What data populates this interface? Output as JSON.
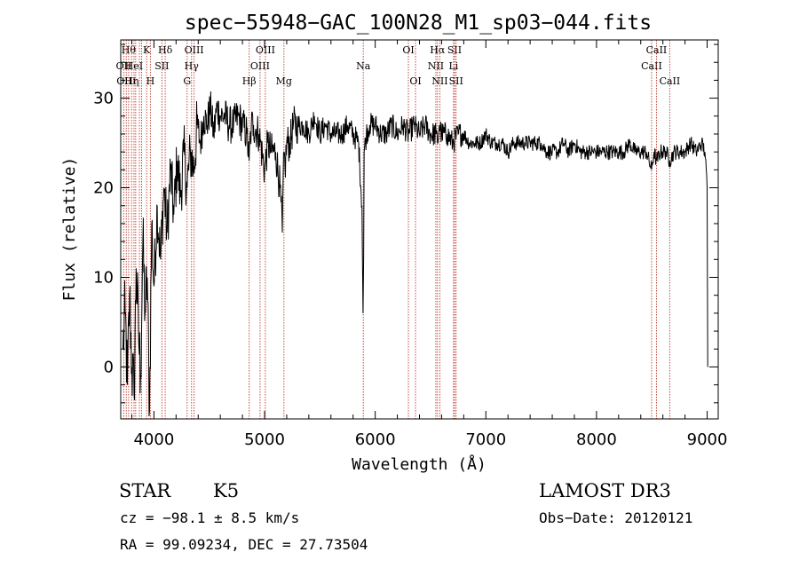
{
  "chart_data": {
    "type": "line",
    "title": "spec−55948−GAC_100N28_M1_sp03−044.fits",
    "xlabel": "Wavelength (Å)",
    "ylabel": "Flux (relative)",
    "xlim": [
      3700,
      9100
    ],
    "ylim": [
      -5.8,
      36.5
    ],
    "x_ticks": [
      4000,
      5000,
      6000,
      7000,
      8000,
      9000
    ],
    "y_ticks": [
      0,
      10,
      20,
      30
    ],
    "grid": false,
    "series": [
      {
        "x": [
          3720,
          3740,
          3760,
          3780,
          3800,
          3820,
          3840,
          3860,
          3880,
          3900,
          3920,
          3940,
          3960,
          3980,
          4000,
          4030,
          4060,
          4090,
          4120,
          4150,
          4180,
          4210,
          4240,
          4270,
          4300,
          4330,
          4360,
          4390,
          4420,
          4450,
          4480,
          4510,
          4540,
          4570,
          4600,
          4640,
          4680,
          4720,
          4760,
          4800,
          4840,
          4860,
          4880,
          4900,
          4950,
          5000,
          5030,
          5060,
          5100,
          5140,
          5160,
          5175,
          5185,
          5200,
          5230,
          5260,
          5300,
          5350,
          5400,
          5450,
          5500,
          5550,
          5600,
          5650,
          5700,
          5750,
          5800,
          5850,
          5880,
          5890,
          5895,
          5900,
          5920,
          5950,
          6000,
          6050,
          6100,
          6150,
          6200,
          6250,
          6300,
          6350,
          6400,
          6450,
          6500,
          6550,
          6563,
          6580,
          6600,
          6650,
          6700,
          6750,
          6800,
          6850,
          6900,
          6950,
          7000,
          7050,
          7100,
          7150,
          7200,
          7250,
          7300,
          7350,
          7400,
          7450,
          7500,
          7550,
          7600,
          7650,
          7700,
          7750,
          7800,
          7850,
          7900,
          7950,
          8000,
          8050,
          8100,
          8150,
          8200,
          8250,
          8300,
          8350,
          8400,
          8450,
          8498,
          8520,
          8542,
          8580,
          8630,
          8662,
          8700,
          8750,
          8800,
          8850,
          8900,
          8950,
          8980,
          9000,
          9005
        ],
        "y": [
          2,
          6,
          -2,
          8,
          0,
          -3,
          11,
          4,
          -1,
          14,
          6,
          10,
          -5,
          16,
          9,
          18,
          12,
          20,
          15,
          22,
          17,
          23,
          19,
          24,
          20,
          24,
          22,
          27,
          25,
          28,
          27,
          29,
          26,
          29,
          28,
          28,
          27,
          27,
          28,
          27,
          26,
          23,
          27,
          27,
          26,
          22,
          25,
          24,
          24,
          20,
          15,
          24,
          22,
          25,
          25,
          27,
          27,
          27,
          26,
          28,
          26,
          27,
          26,
          26,
          26,
          27,
          26,
          25,
          18,
          6,
          12,
          24,
          26,
          27,
          27,
          26,
          26,
          27,
          26,
          27,
          26,
          27,
          26,
          27,
          26,
          26,
          25,
          27,
          26,
          26,
          25,
          26,
          26,
          25,
          25,
          25,
          26,
          25,
          25,
          25,
          24,
          25,
          25,
          25,
          25,
          25,
          25,
          24,
          24,
          24,
          25,
          24,
          25,
          24,
          24,
          24,
          24,
          24,
          24,
          24,
          24,
          24,
          25,
          24,
          24,
          24,
          22,
          24,
          23,
          24,
          24,
          23,
          24,
          24,
          24,
          25,
          24,
          25,
          24,
          20,
          0
        ]
      }
    ],
    "lines": [
      {
        "w": 3727,
        "label": "OII",
        "row": 1
      },
      {
        "w": 3750,
        "label": "OIII",
        "row": 2
      },
      {
        "w": 3771,
        "label": "Hθ",
        "row": 0
      },
      {
        "w": 3798,
        "label": "Hη",
        "row": 2
      },
      {
        "w": 3820,
        "label": "HeI",
        "row": 1
      },
      {
        "w": 3835,
        "label": "",
        "row": -1
      },
      {
        "w": 3869,
        "label": "",
        "row": -1
      },
      {
        "w": 3889,
        "label": "",
        "row": -1
      },
      {
        "w": 3934,
        "label": "K",
        "row": 0
      },
      {
        "w": 3968,
        "label": "H",
        "row": 2
      },
      {
        "w": 4072,
        "label": "SII",
        "row": 1
      },
      {
        "w": 4102,
        "label": "Hδ",
        "row": 0
      },
      {
        "w": 4300,
        "label": "G",
        "row": 2
      },
      {
        "w": 4340,
        "label": "Hγ",
        "row": 1
      },
      {
        "w": 4363,
        "label": "OIII",
        "row": 0
      },
      {
        "w": 4861,
        "label": "Hβ",
        "row": 2
      },
      {
        "w": 4959,
        "label": "OIII",
        "row": 1
      },
      {
        "w": 5007,
        "label": "OIII",
        "row": 0
      },
      {
        "w": 5175,
        "label": "Mg",
        "row": 2
      },
      {
        "w": 5892,
        "label": "Na",
        "row": 1
      },
      {
        "w": 6300,
        "label": "OI",
        "row": 0
      },
      {
        "w": 6364,
        "label": "OI",
        "row": 2
      },
      {
        "w": 6548,
        "label": "NII",
        "row": 1
      },
      {
        "w": 6563,
        "label": "Hα",
        "row": 0
      },
      {
        "w": 6584,
        "label": "NII",
        "row": 2
      },
      {
        "w": 6708,
        "label": "Li",
        "row": 1
      },
      {
        "w": 6717,
        "label": "SII",
        "row": 0
      },
      {
        "w": 6731,
        "label": "SII",
        "row": 2
      },
      {
        "w": 8498,
        "label": "CaII",
        "row": 1
      },
      {
        "w": 8542,
        "label": "CaII",
        "row": 0
      },
      {
        "w": 8662,
        "label": "CaII",
        "row": 2
      }
    ]
  },
  "info": {
    "class": "STAR",
    "subclass": "K5",
    "survey": "LAMOST DR3",
    "cz": "cz = −98.1 ± 8.5 km/s",
    "obs_date": "Obs−Date: 20120121",
    "radec": "RA =  99.09234, DEC =  27.73504"
  }
}
